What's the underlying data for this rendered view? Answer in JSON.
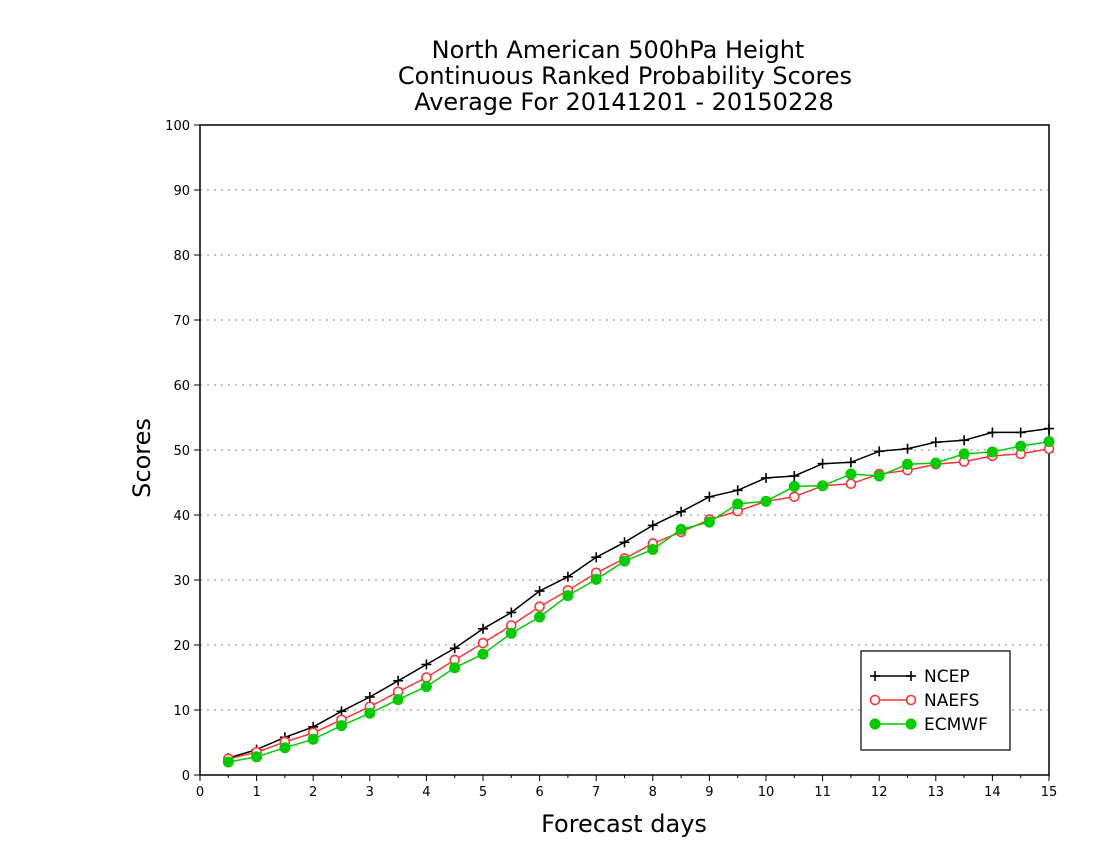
{
  "chart_data": {
    "type": "line",
    "title": [
      "North American 500hPa Height",
      "Continuous Ranked Probability Scores",
      "Average For 20141201 - 20150228"
    ],
    "xlabel": "Forecast days",
    "ylabel": "Scores",
    "xlim": [
      0,
      15
    ],
    "ylim": [
      0,
      100
    ],
    "xticks": [
      0,
      1,
      2,
      3,
      4,
      5,
      6,
      7,
      8,
      9,
      10,
      11,
      12,
      13,
      14,
      15
    ],
    "yticks": [
      0,
      10,
      20,
      30,
      40,
      50,
      60,
      70,
      80,
      90,
      100
    ],
    "grid": "horizontal dotted",
    "legend_position": "bottom-right",
    "x": [
      0.5,
      1,
      1.5,
      2,
      2.5,
      3,
      3.5,
      4,
      4.5,
      5,
      5.5,
      6,
      6.5,
      7,
      7.5,
      8,
      8.5,
      9,
      9.5,
      10,
      10.5,
      11,
      11.5,
      12,
      12.5,
      13,
      13.5,
      14,
      14.5,
      15
    ],
    "series": [
      {
        "name": "NCEP",
        "color": "#000000",
        "marker": "plus",
        "values": [
          2.6,
          3.9,
          5.8,
          7.4,
          9.8,
          12.0,
          14.5,
          17.0,
          19.5,
          22.5,
          25.0,
          28.3,
          30.5,
          33.5,
          35.8,
          38.4,
          40.5,
          42.8,
          43.8,
          45.7,
          46.0,
          47.9,
          48.1,
          49.8,
          50.2,
          51.2,
          51.5,
          52.7,
          52.7,
          53.3
        ]
      },
      {
        "name": "NAEFS",
        "color": "#ff3333",
        "marker": "open-circle",
        "values": [
          2.5,
          3.5,
          5.1,
          6.5,
          8.5,
          10.5,
          12.8,
          15.0,
          17.7,
          20.3,
          23.0,
          25.9,
          28.4,
          31.1,
          33.3,
          35.6,
          37.4,
          39.3,
          40.6,
          42.1,
          42.8,
          44.5,
          44.8,
          46.3,
          46.9,
          47.8,
          48.2,
          49.1,
          49.4,
          50.2
        ]
      },
      {
        "name": "ECMWF",
        "color": "#00cc00",
        "marker": "filled-circle",
        "values": [
          2.0,
          2.8,
          4.2,
          5.5,
          7.6,
          9.5,
          11.6,
          13.6,
          16.5,
          18.6,
          21.8,
          24.3,
          27.6,
          30.1,
          32.9,
          34.7,
          37.8,
          38.9,
          41.7,
          42.1,
          44.4,
          44.5,
          46.3,
          46.0,
          47.8,
          48.0,
          49.4,
          49.7,
          50.6,
          51.3
        ]
      }
    ]
  }
}
